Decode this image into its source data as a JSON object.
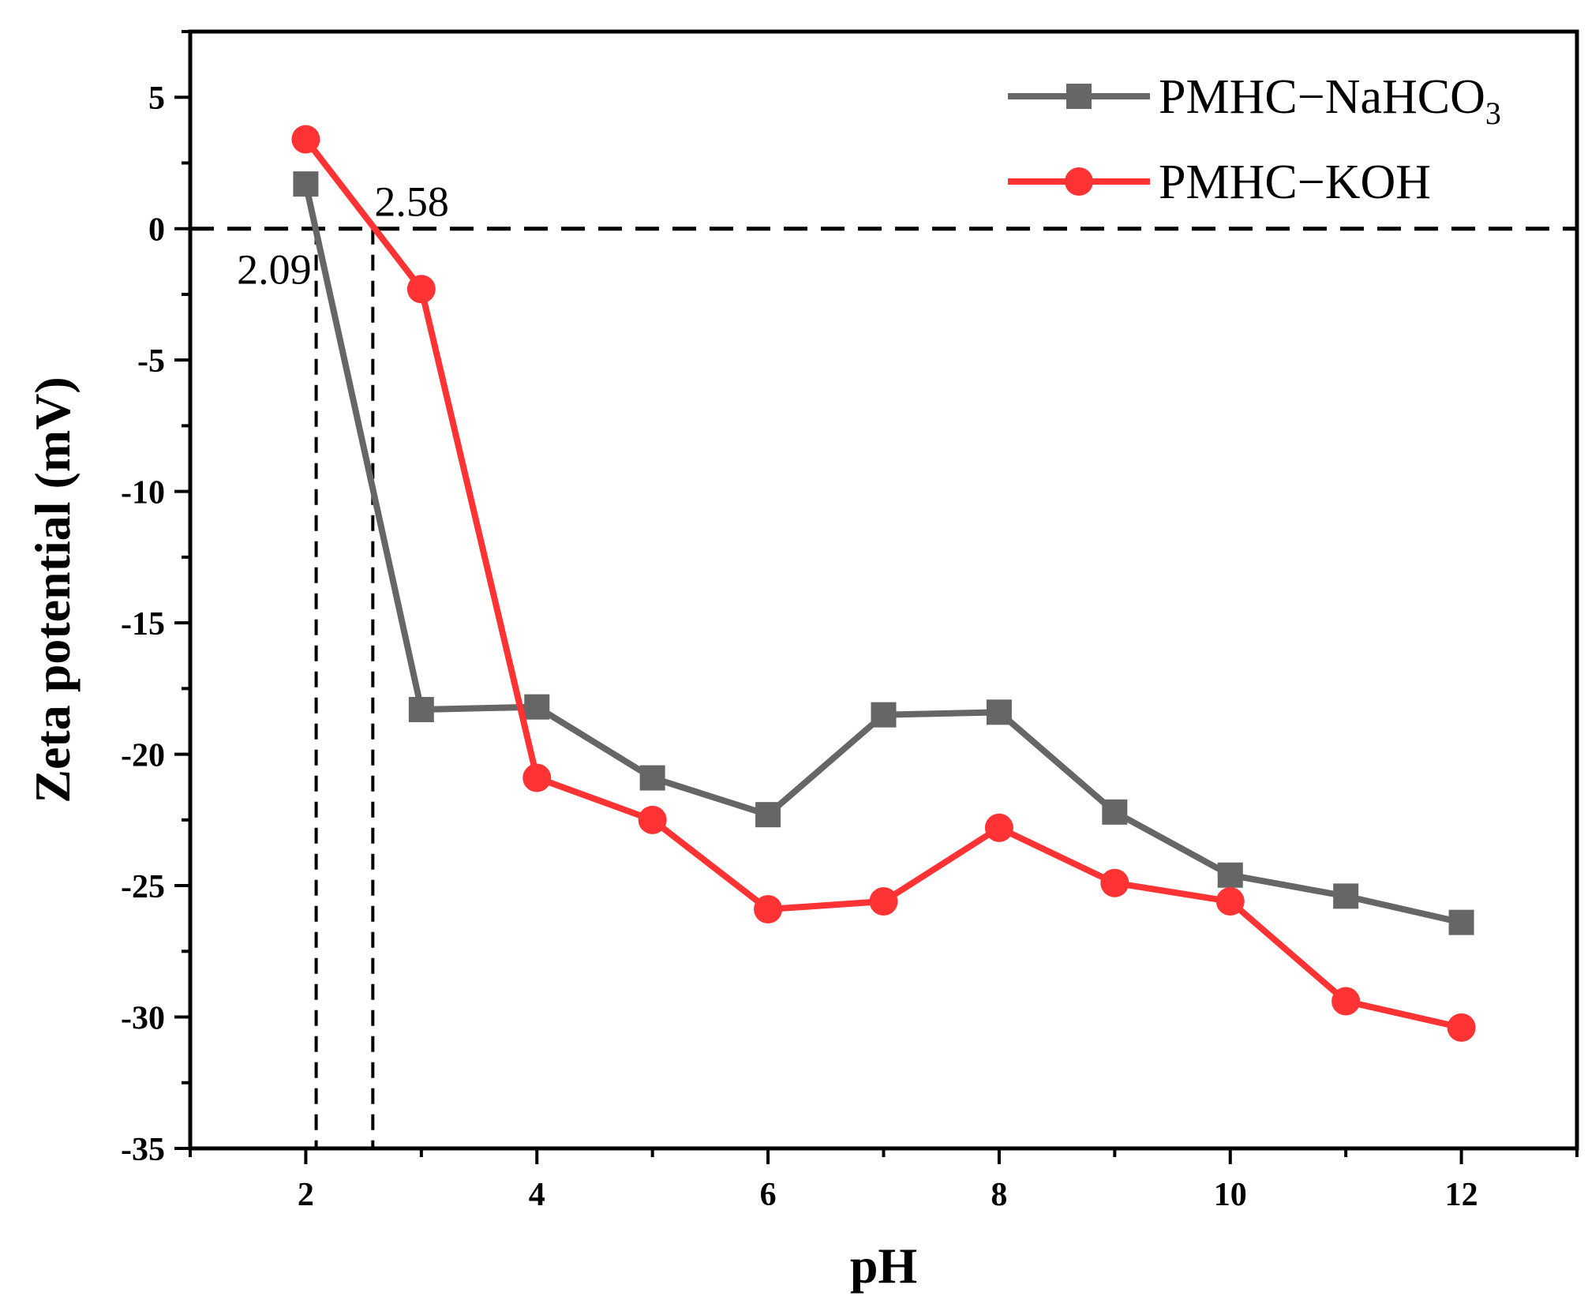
{
  "chart_data": {
    "type": "line",
    "title": "",
    "xlabel": "pH",
    "ylabel": "Zeta potential (mV)",
    "xlim": [
      1,
      13
    ],
    "ylim": [
      -35,
      7.5
    ],
    "x_ticks": [
      2,
      4,
      6,
      8,
      10,
      12
    ],
    "y_ticks": [
      5,
      0,
      -5,
      -10,
      -15,
      -20,
      -25,
      -30,
      -35
    ],
    "x_minor_step": 1,
    "y_minor_step": 2.5,
    "legend_position": "top-right",
    "series": [
      {
        "name": "PMHC−NaHCO",
        "name_subscript": "3",
        "color": "#666666",
        "marker": "square",
        "x": [
          2,
          3,
          4,
          5,
          6,
          7,
          8,
          9,
          10,
          11,
          12
        ],
        "values": [
          1.7,
          -18.3,
          -18.2,
          -20.9,
          -22.3,
          -18.5,
          -18.4,
          -22.2,
          -24.6,
          -25.4,
          -26.4
        ]
      },
      {
        "name": "PMHC−KOH",
        "name_subscript": "",
        "color": "#ff3333",
        "marker": "circle",
        "x": [
          2,
          3,
          4,
          5,
          6,
          7,
          8,
          9,
          10,
          11,
          12
        ],
        "values": [
          3.4,
          -2.3,
          -20.9,
          -22.5,
          -25.9,
          -25.6,
          -22.8,
          -24.9,
          -25.6,
          -29.4,
          -30.4
        ]
      }
    ],
    "reference_lines": [
      {
        "orientation": "horizontal",
        "value": 0,
        "style": "dashed"
      },
      {
        "orientation": "vertical",
        "value": 2.09,
        "style": "dashed",
        "label": "2.09"
      },
      {
        "orientation": "vertical",
        "value": 2.58,
        "style": "dashed",
        "label": "2.58"
      }
    ]
  }
}
